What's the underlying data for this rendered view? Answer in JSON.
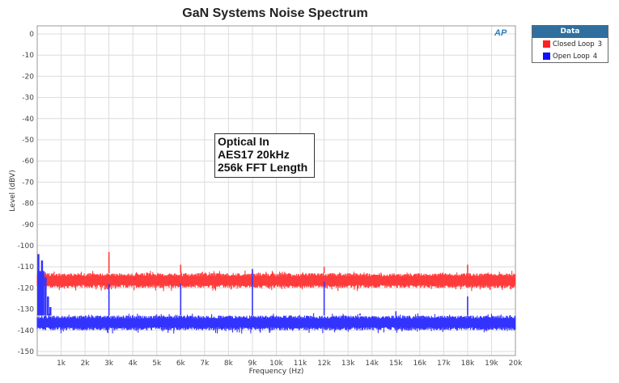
{
  "chart_data": {
    "type": "line",
    "title": "GaN Systems Noise Spectrum",
    "xlabel": "Frequency (Hz)",
    "ylabel": "Level (dBV)",
    "xlim": [
      0,
      20000
    ],
    "ylim": [
      -150,
      0
    ],
    "x_tick_labels": [
      "1k",
      "2k",
      "3k",
      "4k",
      "5k",
      "6k",
      "7k",
      "8k",
      "9k",
      "10k",
      "11k",
      "12k",
      "13k",
      "14k",
      "15k",
      "16k",
      "17k",
      "18k",
      "19k",
      "20k"
    ],
    "y_tick_labels": [
      "0",
      "-10",
      "-20",
      "-30",
      "-40",
      "-50",
      "-60",
      "-70",
      "-80",
      "-90",
      "-100",
      "-110",
      "-120",
      "-130",
      "-140",
      "-150"
    ],
    "grid": true,
    "legend_position": "right-outside",
    "series": [
      {
        "name": "Closed Loop",
        "id": "3",
        "color": "#ff3b3b",
        "noise_floor_db": -116,
        "noise_band_db": [
          -120,
          -113
        ],
        "spikes": [
          {
            "freq": 3000,
            "peak_db": -103
          },
          {
            "freq": 6000,
            "peak_db": -109
          },
          {
            "freq": 9000,
            "peak_db": -112
          },
          {
            "freq": 12000,
            "peak_db": -110
          },
          {
            "freq": 18000,
            "peak_db": -109
          }
        ]
      },
      {
        "name": "Open Loop",
        "id": "4",
        "color": "#3333ff",
        "noise_floor_db": -136,
        "noise_band_db": [
          -140,
          -133
        ],
        "low_freq_rise": [
          {
            "freq": 50,
            "peak_db": -104
          },
          {
            "freq": 200,
            "peak_db": -107
          },
          {
            "freq": 350,
            "peak_db": -115
          },
          {
            "freq": 450,
            "peak_db": -124
          },
          {
            "freq": 550,
            "peak_db": -129
          }
        ],
        "spikes": [
          {
            "freq": 3000,
            "peak_db": -118
          },
          {
            "freq": 6000,
            "peak_db": -118
          },
          {
            "freq": 9000,
            "peak_db": -111
          },
          {
            "freq": 12000,
            "peak_db": -117
          },
          {
            "freq": 13500,
            "peak_db": -132
          },
          {
            "freq": 15000,
            "peak_db": -131
          },
          {
            "freq": 17000,
            "peak_db": -133
          },
          {
            "freq": 18000,
            "peak_db": -124
          }
        ]
      }
    ],
    "annotations": [
      "Optical In",
      "AES17 20kHz",
      "256k FFT Length"
    ]
  },
  "legend": {
    "header": "Data",
    "items": [
      {
        "label": "Closed Loop",
        "num": "3",
        "color": "#ff3b3b"
      },
      {
        "label": "Open Loop",
        "num": "4",
        "color": "#3333ff"
      }
    ]
  },
  "logo": "AP"
}
